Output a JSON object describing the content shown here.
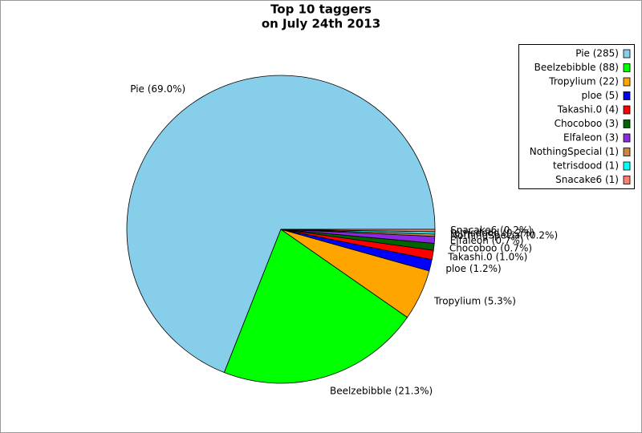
{
  "chart_data": {
    "type": "pie",
    "title": [
      "Top 10 taggers",
      "on July 24th 2013"
    ],
    "values": [
      285,
      88,
      22,
      5,
      4,
      3,
      3,
      1,
      1,
      1
    ],
    "value_labels": [
      "Pie (69.0%)",
      "Beelzebibble (21.3%)",
      "Tropylium (5.3%)",
      "ploe (1.2%)",
      "Takashi.0 (1.0%)",
      "Chocoboo (0.7%)",
      "Elfaleon (0.7%)",
      "NothingSpecial (0.2%)",
      "tetrisdood (0.2%)",
      "Snacake6 (0.2%)"
    ],
    "legend_labels": [
      "Pie (285)",
      "Beelzebibble (88)",
      "Tropylium (22)",
      "ploe (5)",
      "Takashi.0 (4)",
      "Chocoboo (3)",
      "Elfaleon (3)",
      "NothingSpecial (1)",
      "tetrisdood (1)",
      "Snacake6 (1)"
    ],
    "colors": [
      "#87ceeb",
      "#00ff00",
      "#ffa500",
      "#0000ff",
      "#ff0000",
      "#006400",
      "#8a2be2",
      "#cd853f",
      "#00ffff",
      "#fa8072"
    ],
    "legend": "upper right"
  }
}
